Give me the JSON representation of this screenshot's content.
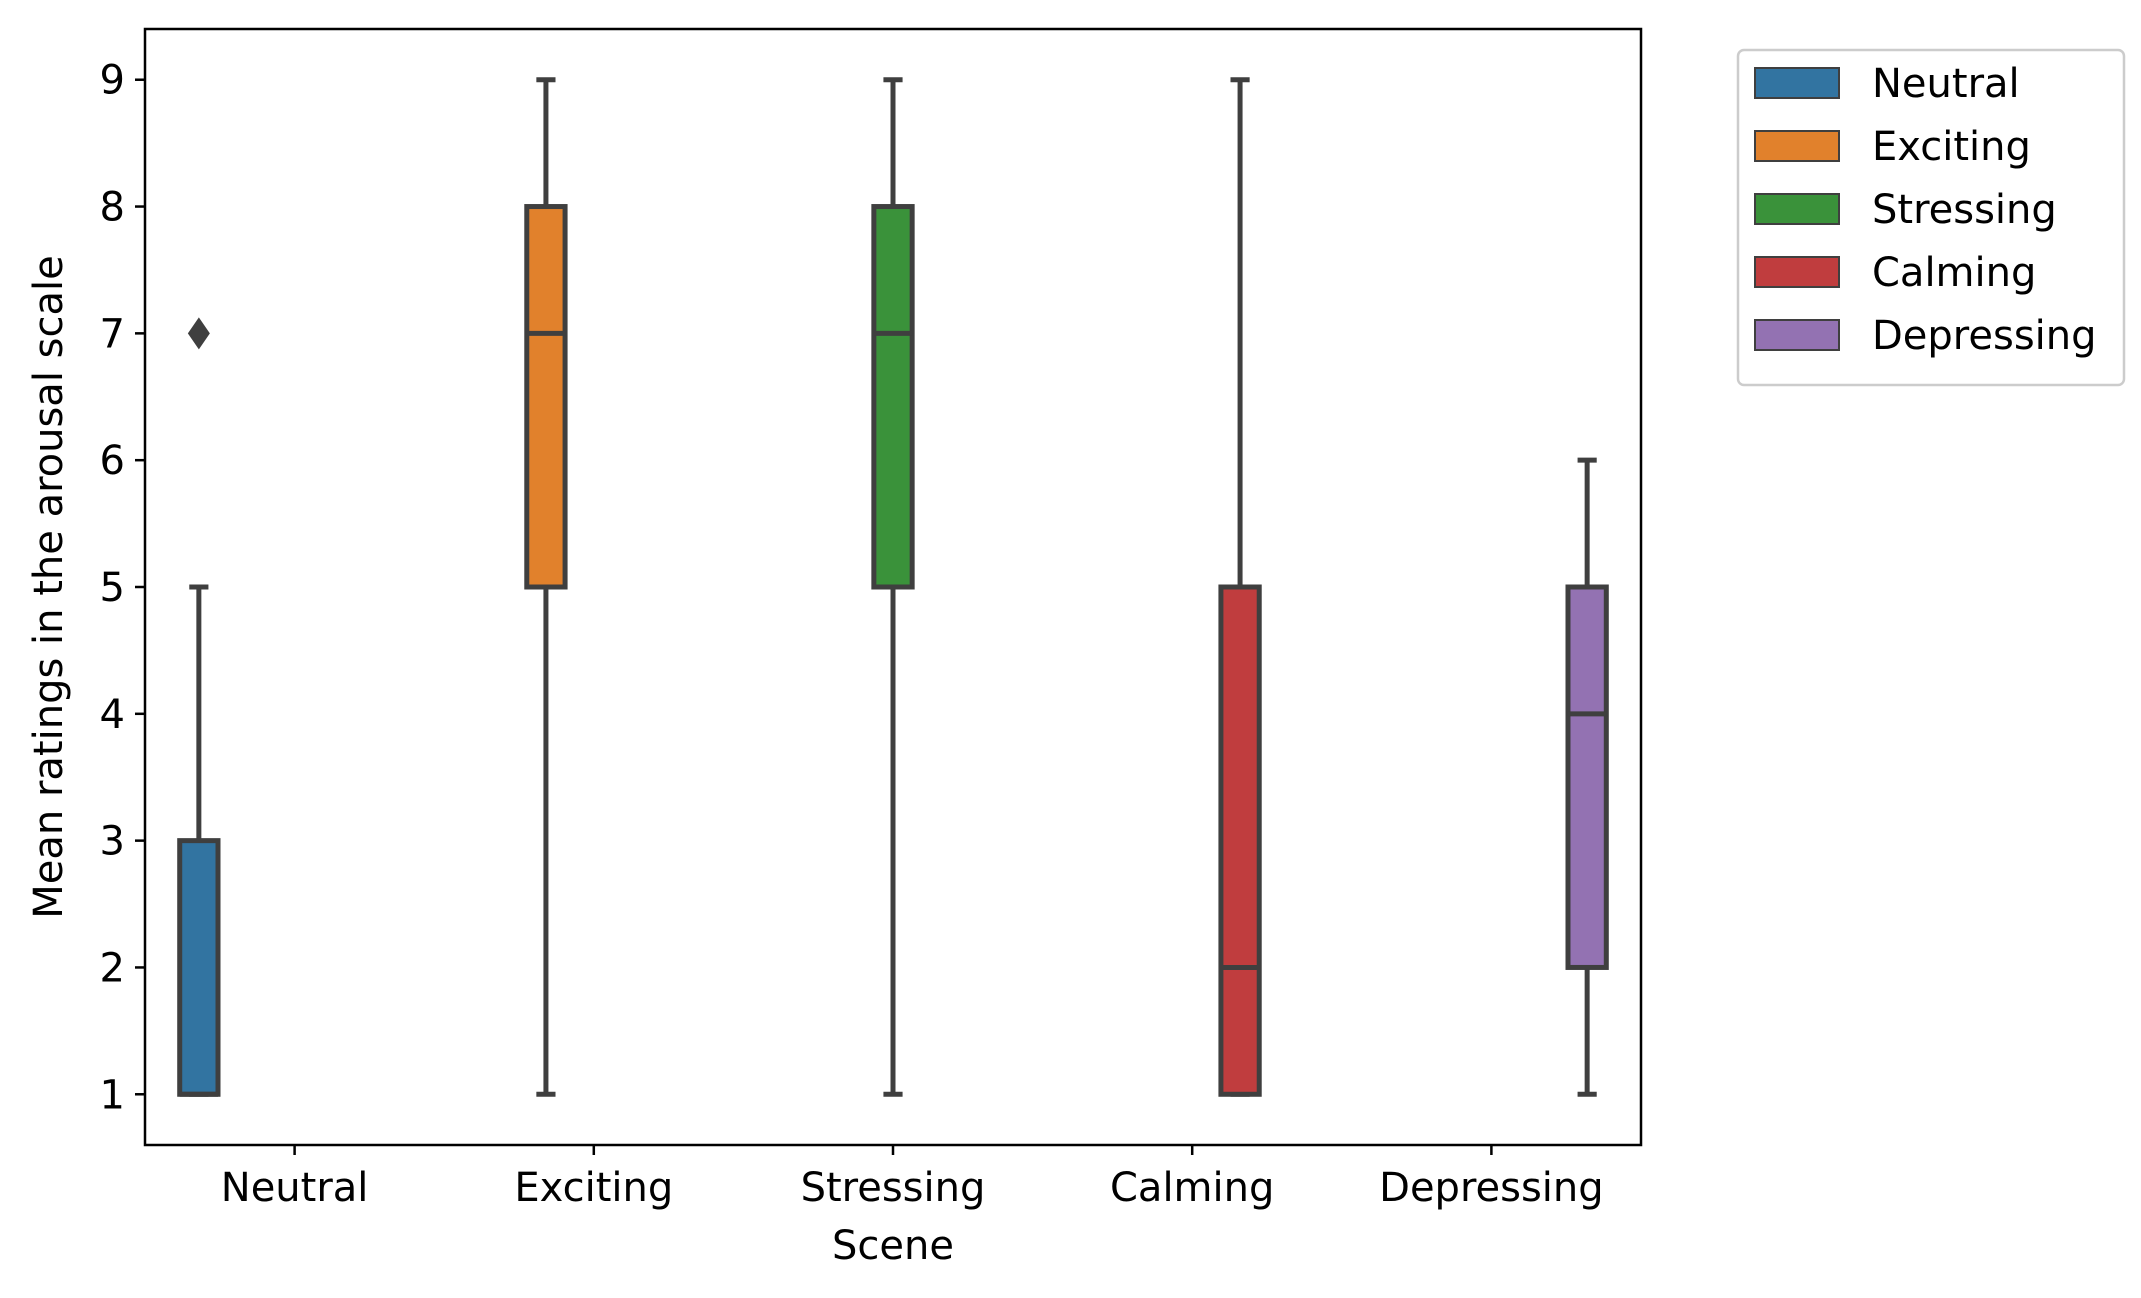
{
  "chart_data": {
    "type": "box",
    "xlabel": "Scene",
    "ylabel": "Mean ratings in the arousal scale",
    "categories": [
      "Neutral",
      "Exciting",
      "Stressing",
      "Calming",
      "Depressing"
    ],
    "ylim": [
      0.6,
      9.4
    ],
    "yticks": [
      1,
      2,
      3,
      4,
      5,
      6,
      7,
      8,
      9
    ],
    "grid": false,
    "legend": {
      "placement": "outside-top-right",
      "entries": [
        "Neutral",
        "Exciting",
        "Stressing",
        "Calming",
        "Depressing"
      ]
    },
    "series": [
      {
        "name": "Neutral",
        "category": "Neutral",
        "color": "#3274a1",
        "whisker_low": 1,
        "q1": 1,
        "median": 1,
        "q3": 3,
        "whisker_high": 5,
        "outliers": [
          7
        ]
      },
      {
        "name": "Exciting",
        "category": "Exciting",
        "color": "#e1812c",
        "whisker_low": 1,
        "q1": 5,
        "median": 7,
        "q3": 8,
        "whisker_high": 9,
        "outliers": []
      },
      {
        "name": "Stressing",
        "category": "Stressing",
        "color": "#3a923a",
        "whisker_low": 1,
        "q1": 5,
        "median": 7,
        "q3": 8,
        "whisker_high": 9,
        "outliers": []
      },
      {
        "name": "Calming",
        "category": "Calming",
        "color": "#c03d3e",
        "whisker_low": 1,
        "q1": 1,
        "median": 2,
        "q3": 5,
        "whisker_high": 9,
        "outliers": []
      },
      {
        "name": "Depressing",
        "category": "Depressing",
        "color": "#9372b2",
        "whisker_low": 1,
        "q1": 2,
        "median": 4,
        "q3": 5,
        "whisker_high": 6,
        "outliers": []
      }
    ],
    "line_color": "#3f3f3f"
  }
}
